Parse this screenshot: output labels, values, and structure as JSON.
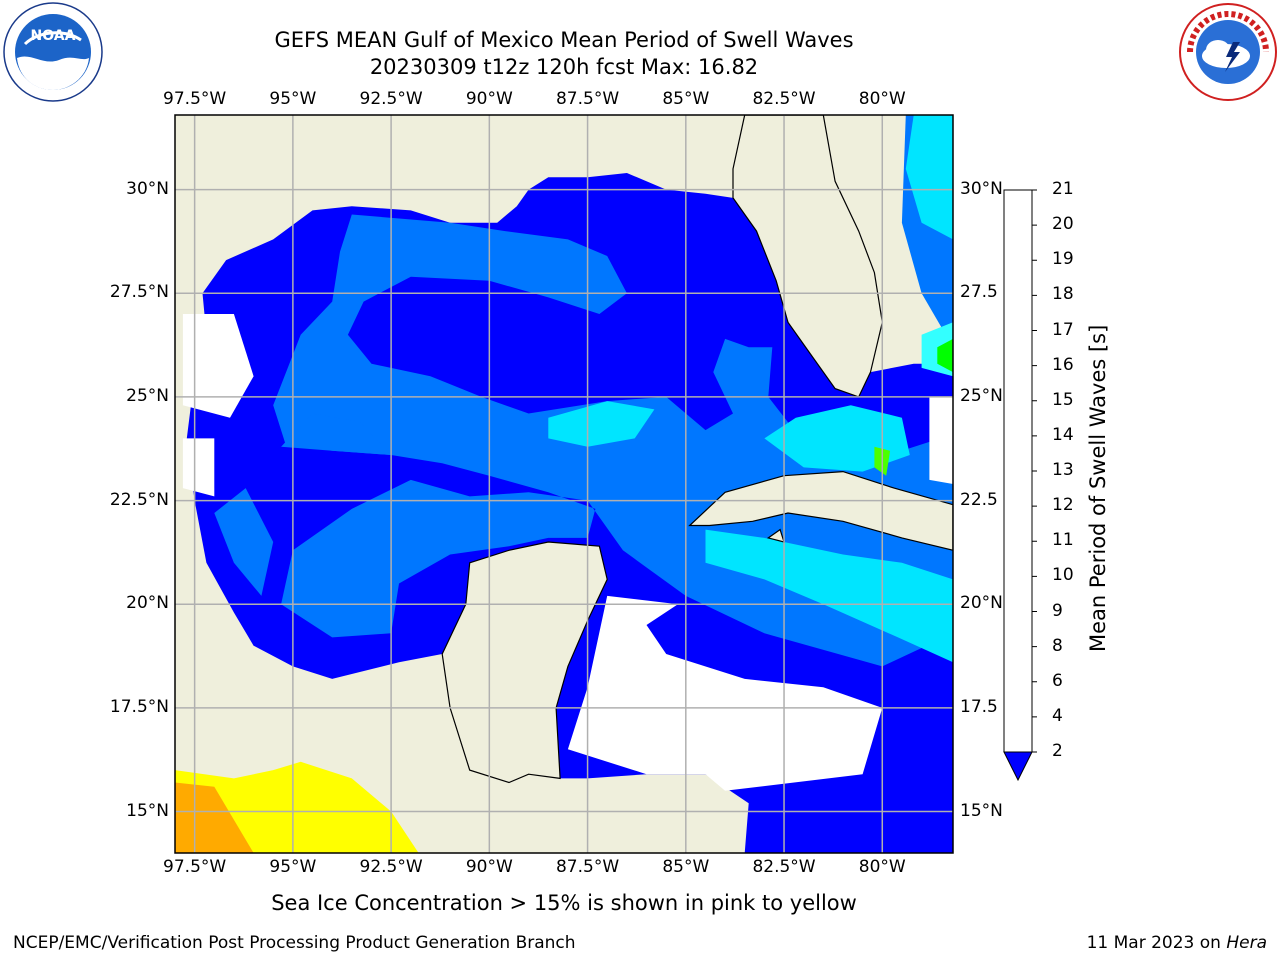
{
  "title": {
    "line1": "GEFS MEAN Gulf of Mexico Mean Period of Swell Waves",
    "line2": "20230309 t12z 120h fcst   Max: 16.82"
  },
  "map": {
    "lon_range": [
      -98.0,
      -78.2
    ],
    "lat_range": [
      14.0,
      31.8
    ],
    "lon_ticks": [
      {
        "value": -97.5,
        "label": "97.5°W"
      },
      {
        "value": -95.0,
        "label": "95°W"
      },
      {
        "value": -92.5,
        "label": "92.5°W"
      },
      {
        "value": -90.0,
        "label": "90°W"
      },
      {
        "value": -87.5,
        "label": "87.5°W"
      },
      {
        "value": -85.0,
        "label": "85°W"
      },
      {
        "value": -82.5,
        "label": "82.5°W"
      },
      {
        "value": -80.0,
        "label": "80°W"
      }
    ],
    "lat_ticks_left": [
      {
        "value": 30.0,
        "label": "30°N"
      },
      {
        "value": 27.5,
        "label": "27.5°N"
      },
      {
        "value": 25.0,
        "label": "25°N"
      },
      {
        "value": 22.5,
        "label": "22.5°N"
      },
      {
        "value": 20.0,
        "label": "20°N"
      },
      {
        "value": 17.5,
        "label": "17.5°N"
      },
      {
        "value": 15.0,
        "label": "15°N"
      }
    ],
    "lat_ticks_right": [
      {
        "value": 30.0,
        "label": "30°N"
      },
      {
        "value": 27.5,
        "label": "27.5"
      },
      {
        "value": 25.0,
        "label": "25°N"
      },
      {
        "value": 22.5,
        "label": "22.5"
      },
      {
        "value": 20.0,
        "label": "20°N"
      },
      {
        "value": 17.5,
        "label": "17.5"
      },
      {
        "value": 15.0,
        "label": "15°N"
      }
    ],
    "grid": true,
    "colors": {
      "land": "#efefdc",
      "nodata": "#ffffff",
      "grid": "#b0b0b0",
      "coast": "#000000"
    }
  },
  "colorbar": {
    "label": "Mean Period of Swell Waves [s]",
    "extend": "min",
    "levels": [
      2,
      4,
      6,
      8,
      9,
      10,
      11,
      12,
      13,
      14,
      15,
      16,
      17,
      18,
      19,
      20,
      21
    ],
    "colors": [
      "#0077ff",
      "#00e5ff",
      "#33ffff",
      "#99ffff",
      "#4cff7f",
      "#00ff00",
      "#4cff00",
      "#99ff00",
      "#ccff00",
      "#eeff00",
      "#ffff00",
      "#ffd400",
      "#ffaa00",
      "#ff8000",
      "#ff5500",
      "#ff2a00",
      "#ff0000"
    ],
    "under_color": "#0000ff"
  },
  "note": "Sea Ice Concentration > 15% is shown in pink to yellow",
  "footer": {
    "left": "NCEP/EMC/Verification Post Processing Product Generation Branch",
    "date": "11 Mar 2023 on ",
    "machine": "Hera"
  }
}
